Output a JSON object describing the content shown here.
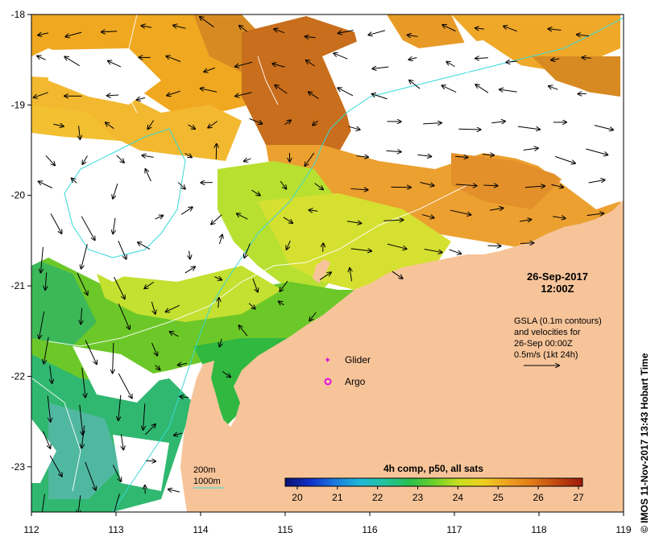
{
  "map": {
    "lon_ticks": [
      "112",
      "113",
      "114",
      "115",
      "116",
      "117",
      "118",
      "119"
    ],
    "lat_ticks": [
      "-18",
      "-19",
      "-20",
      "-21",
      "-22",
      "-23"
    ],
    "extent": {
      "lon": [
        112,
        119
      ],
      "lat": [
        -23.5,
        -18
      ]
    }
  },
  "timestamp": {
    "date": "26-Sep-2017",
    "time": "12:00Z"
  },
  "info": [
    "GSLA (0.1m contours)",
    "and velocities for",
    "26-Sep 00:00Z",
    "0.5m/s (1kt 24h)"
  ],
  "legend": {
    "glider": "Glider",
    "argo": "Argo",
    "glider_color": "#d81bd8",
    "argo_color": "#e010e0"
  },
  "bathymetry": {
    "contour_200": "200m",
    "contour_1000": "1000m",
    "line_color": "#38d8d8"
  },
  "colorbar": {
    "title": "4h comp, p50, all sats",
    "ticks": [
      "20",
      "21",
      "22",
      "23",
      "24",
      "25",
      "26",
      "27"
    ],
    "range": [
      19.7,
      27.1
    ],
    "colors": [
      "#0a1270",
      "#1030c8",
      "#1a78e0",
      "#20b8d8",
      "#22c4a0",
      "#28c050",
      "#6cd028",
      "#c8e020",
      "#f0d020",
      "#f0a020",
      "#e07818",
      "#c04810",
      "#a01808"
    ]
  },
  "credit": "© IMOS 11-Nov-2017 13:43 Hobart Time",
  "colors": {
    "land": "#f7c49a",
    "background": "#ffffff"
  }
}
